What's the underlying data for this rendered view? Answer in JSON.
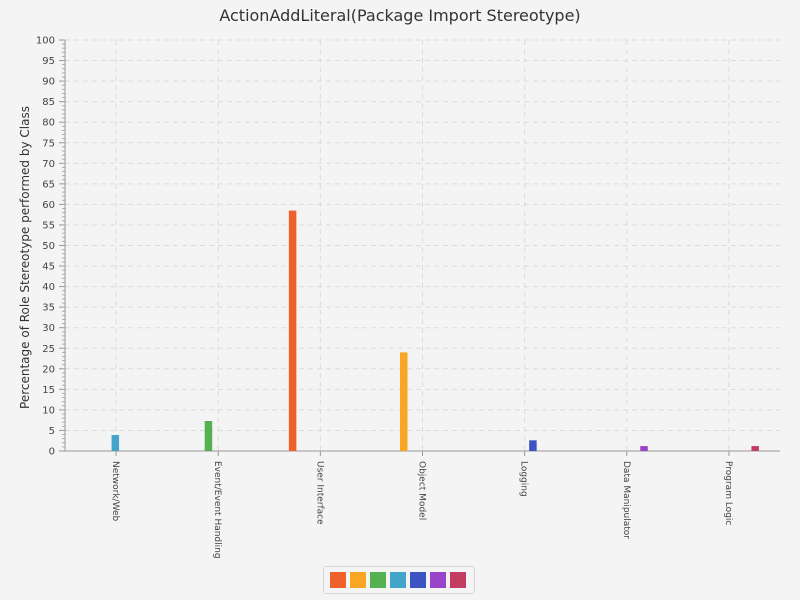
{
  "chart_data": {
    "type": "bar",
    "title": "ActionAddLiteral(Package Import Stereotype)",
    "xlabel": "",
    "ylabel": "Percentage of Role Stereotype performed by Class",
    "ylim": [
      0,
      100
    ],
    "ytick_step": 5,
    "grid": true,
    "legend_position": "bottom-center",
    "categories": [
      "Network/Web",
      "Event/Event Handling",
      "User Interface",
      "Object Model",
      "Logging",
      "Data Manipulator",
      "Program Logic"
    ],
    "series": [
      {
        "color": "#f0602b",
        "values": [
          0,
          0,
          58.5,
          0,
          0,
          0,
          0
        ]
      },
      {
        "color": "#faa625",
        "values": [
          0,
          0,
          0,
          24,
          0,
          0,
          0
        ]
      },
      {
        "color": "#55b050",
        "values": [
          0,
          7.3,
          0,
          0,
          0,
          0,
          0
        ]
      },
      {
        "color": "#42a5c9",
        "values": [
          3.9,
          0,
          0,
          0,
          0,
          0,
          0
        ]
      },
      {
        "color": "#3c53c4",
        "values": [
          0,
          0,
          0,
          0,
          2.6,
          0,
          0
        ]
      },
      {
        "color": "#9a45c9",
        "values": [
          0,
          0,
          0,
          0,
          0,
          1.2,
          0
        ]
      },
      {
        "color": "#c33d60",
        "values": [
          0,
          0,
          0,
          0,
          0,
          0,
          1.2
        ]
      }
    ]
  }
}
